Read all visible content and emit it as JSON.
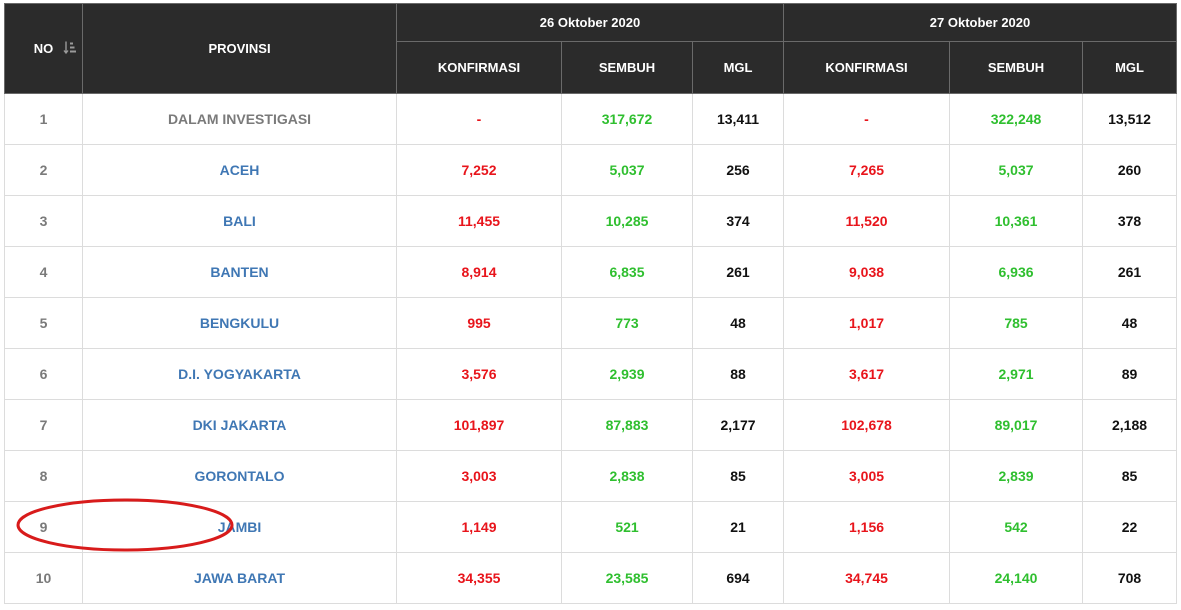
{
  "header": {
    "no_label": "NO",
    "provinsi_label": "PROVINSI",
    "dates": [
      "26 Oktober 2020",
      "27 Oktober 2020"
    ],
    "sub_labels": [
      "KONFIRMASI",
      "SEMBUH",
      "MGL",
      "KONFIRMASI",
      "SEMBUH",
      "MGL"
    ],
    "sort_icon": "sort-icon"
  },
  "rows": [
    {
      "no": "1",
      "provinsi": "DALAM INVESTIGASI",
      "d1_konf": "-",
      "d1_semb": "317,672",
      "d1_mgl": "13,411",
      "d2_konf": "-",
      "d2_semb": "322,248",
      "d2_mgl": "13,512"
    },
    {
      "no": "2",
      "provinsi": "ACEH",
      "d1_konf": "7,252",
      "d1_semb": "5,037",
      "d1_mgl": "256",
      "d2_konf": "7,265",
      "d2_semb": "5,037",
      "d2_mgl": "260"
    },
    {
      "no": "3",
      "provinsi": "BALI",
      "d1_konf": "11,455",
      "d1_semb": "10,285",
      "d1_mgl": "374",
      "d2_konf": "11,520",
      "d2_semb": "10,361",
      "d2_mgl": "378"
    },
    {
      "no": "4",
      "provinsi": "BANTEN",
      "d1_konf": "8,914",
      "d1_semb": "6,835",
      "d1_mgl": "261",
      "d2_konf": "9,038",
      "d2_semb": "6,936",
      "d2_mgl": "261"
    },
    {
      "no": "5",
      "provinsi": "BENGKULU",
      "d1_konf": "995",
      "d1_semb": "773",
      "d1_mgl": "48",
      "d2_konf": "1,017",
      "d2_semb": "785",
      "d2_mgl": "48"
    },
    {
      "no": "6",
      "provinsi": "D.I. YOGYAKARTA",
      "d1_konf": "3,576",
      "d1_semb": "2,939",
      "d1_mgl": "88",
      "d2_konf": "3,617",
      "d2_semb": "2,971",
      "d2_mgl": "89"
    },
    {
      "no": "7",
      "provinsi": "DKI JAKARTA",
      "d1_konf": "101,897",
      "d1_semb": "87,883",
      "d1_mgl": "2,177",
      "d2_konf": "102,678",
      "d2_semb": "89,017",
      "d2_mgl": "2,188"
    },
    {
      "no": "8",
      "provinsi": "GORONTALO",
      "d1_konf": "3,003",
      "d1_semb": "2,838",
      "d1_mgl": "85",
      "d2_konf": "3,005",
      "d2_semb": "2,839",
      "d2_mgl": "85"
    },
    {
      "no": "9",
      "provinsi": "JAMBI",
      "d1_konf": "1,149",
      "d1_semb": "521",
      "d1_mgl": "21",
      "d2_konf": "1,156",
      "d2_semb": "542",
      "d2_mgl": "22"
    },
    {
      "no": "10",
      "provinsi": "JAWA BARAT",
      "d1_konf": "34,355",
      "d1_semb": "23,585",
      "d1_mgl": "694",
      "d2_konf": "34,745",
      "d2_semb": "24,140",
      "d2_mgl": "708"
    }
  ],
  "colors": {
    "header_bg": "#2b2b2b",
    "konfirmasi": "#e8141b",
    "sembuh": "#2fbf2f",
    "province_link": "#3f77b4",
    "highlight": "#d81b1b"
  }
}
